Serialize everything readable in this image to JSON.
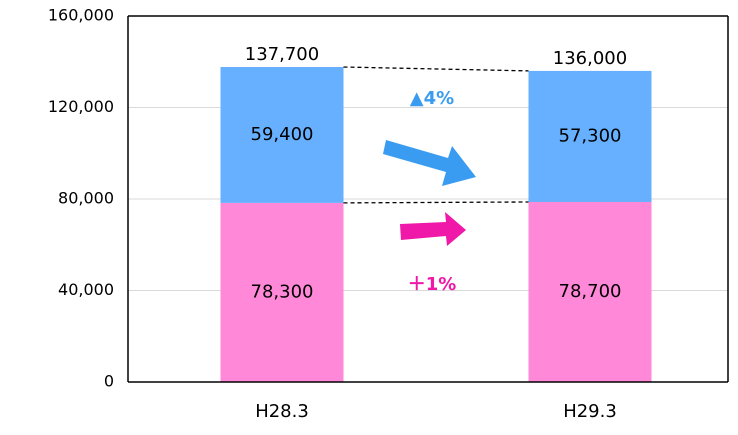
{
  "chart_data": {
    "type": "stacked_bar",
    "categories": [
      "H28.3",
      "H29.3"
    ],
    "series": [
      {
        "color": "#ff88d8",
        "values": [
          78300,
          78700
        ],
        "value_labels": [
          "78,300",
          "78,700"
        ]
      },
      {
        "color": "#66b0ff",
        "values": [
          59400,
          57300
        ],
        "value_labels": [
          "59,400",
          "57,300"
        ]
      }
    ],
    "totals": [
      137700,
      136000
    ],
    "totals_labels": [
      "137,700",
      "136,000"
    ],
    "ylim": [
      0,
      160000
    ],
    "yticks": [
      0,
      {
        "value": 40000,
        "label": "40,000"
      },
      {
        "value": 80000,
        "label": "80,000"
      },
      {
        "value": 120000,
        "label": "120,000"
      },
      {
        "value": 160000,
        "label": "160,000"
      }
    ],
    "grid": true,
    "annotations": [
      {
        "text": "▲4%",
        "color": "#3a9cf0"
      },
      {
        "text": "＋1%",
        "color": "#f018a8"
      }
    ]
  }
}
